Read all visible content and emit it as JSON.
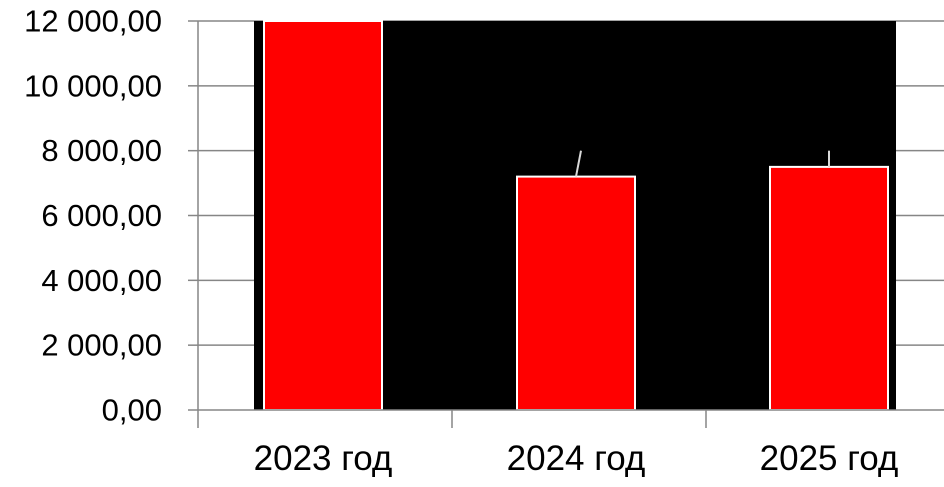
{
  "chart_data": {
    "type": "bar",
    "categories": [
      "2023 год",
      "2024 год",
      "2025 год"
    ],
    "series": [
      {
        "values": [
          12000,
          7200,
          7500
        ]
      }
    ],
    "ylim": [
      0,
      12000
    ],
    "yticks": [
      0,
      2000,
      4000,
      6000,
      8000,
      10000,
      12000
    ],
    "ytick_labels": [
      "0,00",
      "2 000,00",
      "4 000,00",
      "6 000,00",
      "8 000,00",
      "10 000,00",
      "12 000,00"
    ],
    "error_bar_tops": [
      null,
      8000,
      8000
    ],
    "grid": true,
    "title": "",
    "xlabel": "",
    "ylabel": "",
    "colors": {
      "bar": "#ff0000",
      "plot_background": "#000000",
      "bar_outline": "#ffffff",
      "axis": "#868686",
      "grid": "#868686",
      "error_bar": "#d9d9d9"
    }
  }
}
